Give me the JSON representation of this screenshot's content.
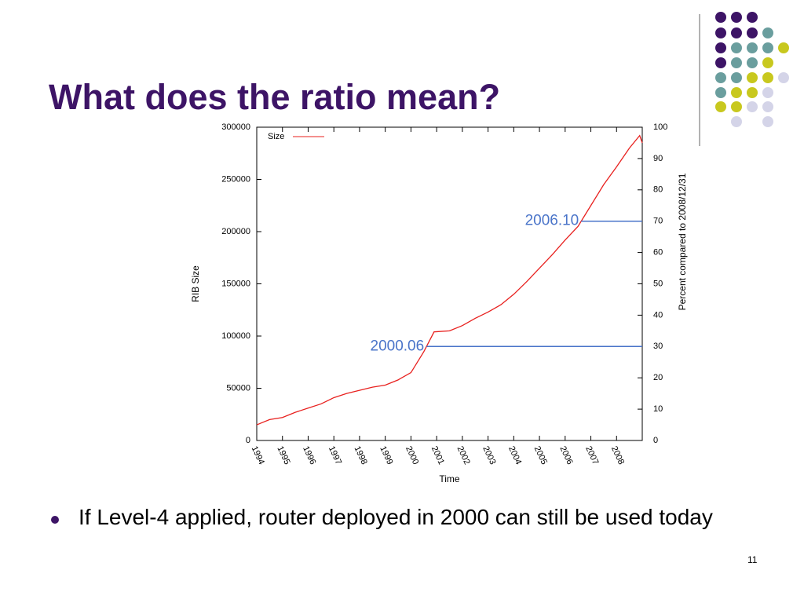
{
  "slide": {
    "title": "What does the ratio mean?",
    "bullet": "If Level-4 applied, router deployed in 2000 can still be used today",
    "page_number": "11"
  },
  "chart_data": {
    "type": "line",
    "xlabel": "Time",
    "ylabel": "RIB Size",
    "y2label": "Percent compared to 2008/12/31",
    "x": [
      1994.0,
      1994.5,
      1995.0,
      1995.5,
      1996.0,
      1996.5,
      1997.0,
      1997.5,
      1998.0,
      1998.5,
      1999.0,
      1999.5,
      2000.0,
      2000.5,
      2000.9,
      2001.5,
      2002.0,
      2002.5,
      2003.0,
      2003.5,
      2004.0,
      2004.5,
      2005.0,
      2005.5,
      2006.0,
      2006.5,
      2007.0,
      2007.5,
      2008.0,
      2008.5,
      2008.9,
      2009.0
    ],
    "series": [
      {
        "name": "Size",
        "color": "#e8201e",
        "values": [
          15000,
          20000,
          22000,
          27000,
          31000,
          35000,
          41000,
          45000,
          48000,
          51000,
          53000,
          58000,
          65000,
          85000,
          104000,
          105000,
          110000,
          117000,
          123000,
          130000,
          140000,
          152000,
          165000,
          178000,
          192000,
          205000,
          225000,
          245000,
          262000,
          280000,
          292000,
          285000
        ]
      }
    ],
    "xlim": [
      1994,
      2009
    ],
    "xticks": [
      1994,
      1995,
      1996,
      1997,
      1998,
      1999,
      2000,
      2001,
      2002,
      2003,
      2004,
      2005,
      2006,
      2007,
      2008
    ],
    "ylim": [
      0,
      300000
    ],
    "yticks": [
      0,
      50000,
      100000,
      150000,
      200000,
      250000,
      300000
    ],
    "y2lim": [
      0,
      100
    ],
    "y2ticks": [
      0,
      10,
      20,
      30,
      40,
      50,
      60,
      70,
      80,
      90,
      100
    ],
    "legend": "top-left",
    "annotations": [
      {
        "text": "2000.06",
        "y2": 30,
        "color": "#4a74c9"
      },
      {
        "text": "2006.10",
        "y2": 70,
        "color": "#4a74c9"
      }
    ]
  }
}
